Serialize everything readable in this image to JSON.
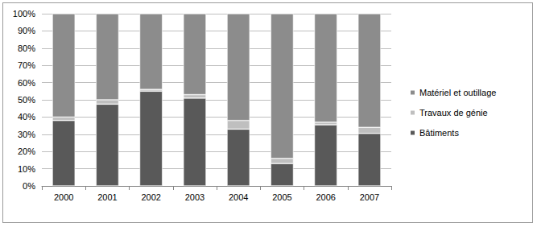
{
  "chart_data": {
    "type": "bar",
    "stacked": true,
    "grid": true,
    "legend": "right",
    "categories": [
      "2000",
      "2001",
      "2002",
      "2003",
      "2004",
      "2005",
      "2006",
      "2007"
    ],
    "series": [
      {
        "name": "Bâtiments",
        "color": "#595959",
        "values": [
          38,
          47.5,
          55,
          51,
          33,
          13,
          35.5,
          30.5
        ]
      },
      {
        "name": "Travaux de génie",
        "color": "#bfbfbf",
        "values": [
          2,
          2.5,
          1,
          2,
          5,
          3,
          1.5,
          3.5
        ]
      },
      {
        "name": "Matériel et outillage",
        "color": "#8c8c8c",
        "values": [
          60,
          50,
          44,
          47,
          62,
          84,
          63,
          66
        ]
      }
    ],
    "ylim": [
      0,
      100
    ],
    "yticks": [
      {
        "value": 0,
        "label": "0%"
      },
      {
        "value": 10,
        "label": "10%"
      },
      {
        "value": 20,
        "label": "20%"
      },
      {
        "value": 30,
        "label": "30%"
      },
      {
        "value": 40,
        "label": "40%"
      },
      {
        "value": 50,
        "label": "50%"
      },
      {
        "value": 60,
        "label": "60%"
      },
      {
        "value": 70,
        "label": "70%"
      },
      {
        "value": 80,
        "label": "80%"
      },
      {
        "value": 90,
        "label": "90%"
      },
      {
        "value": 100,
        "label": "100%"
      }
    ]
  }
}
